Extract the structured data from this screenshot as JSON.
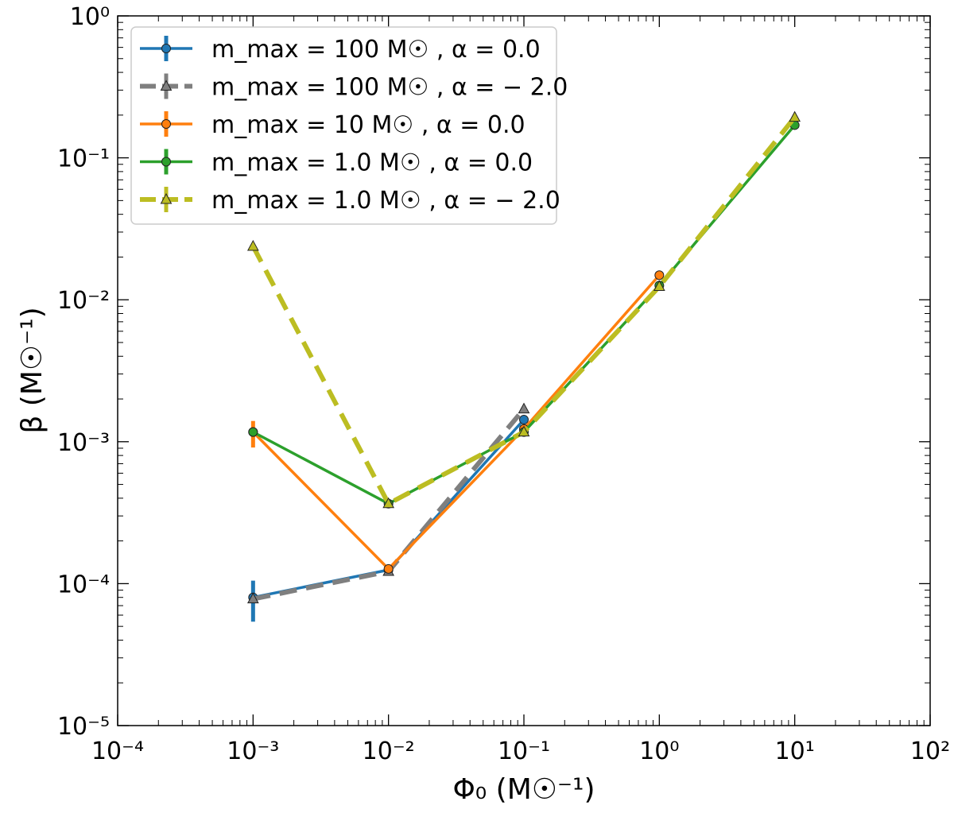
{
  "chart_data": {
    "type": "line",
    "xlabel": "Φ₀ (M☉⁻¹)",
    "ylabel": "β (M☉⁻¹)",
    "xscale": "log",
    "yscale": "log",
    "xlim": [
      0.0001,
      100
    ],
    "ylim": [
      1e-05,
      1
    ],
    "xticks": [
      0.0001,
      0.001,
      0.01,
      0.1,
      1,
      10,
      100
    ],
    "xtick_labels": [
      "10⁻⁴",
      "10⁻³",
      "10⁻²",
      "10⁻¹",
      "10⁰",
      "10¹",
      "10²"
    ],
    "yticks": [
      1e-05,
      0.0001,
      0.001,
      0.01,
      0.1,
      1
    ],
    "ytick_labels": [
      "10⁻⁵",
      "10⁻⁴",
      "10⁻³",
      "10⁻²",
      "10⁻¹",
      "10⁰"
    ],
    "grid": false,
    "legend_placement": "top-left",
    "series": [
      {
        "name": "m_max = 100 M☉ , α = 0.0",
        "color": "#1f77b4",
        "marker": "circle",
        "dashed": false,
        "x": [
          0.001,
          0.01,
          0.1
        ],
        "y": [
          8e-05,
          0.000125,
          0.00143
        ],
        "yerr": [
          [
            5.4e-05,
            0.000105
          ],
          null,
          null
        ]
      },
      {
        "name": "m_max = 100 M☉ , α = − 2.0",
        "color": "#7f7f7f",
        "marker": "triangle",
        "dashed": true,
        "x": [
          0.001,
          0.01,
          0.1
        ],
        "y": [
          7.8e-05,
          0.000122,
          0.0017
        ],
        "yerr": [
          null,
          null,
          null
        ]
      },
      {
        "name": "m_max = 10 M☉ , α = 0.0",
        "color": "#ff7f0e",
        "marker": "circle",
        "dashed": false,
        "x": [
          0.001,
          0.01,
          0.1,
          1
        ],
        "y": [
          0.00117,
          0.000127,
          0.00123,
          0.0149
        ],
        "yerr": [
          [
            0.00091,
            0.0014
          ],
          null,
          null,
          null
        ]
      },
      {
        "name": "m_max = 1.0 M☉ , α = 0.0",
        "color": "#2ca02c",
        "marker": "circle",
        "dashed": false,
        "x": [
          0.001,
          0.01,
          0.1,
          1,
          10
        ],
        "y": [
          0.00117,
          0.000366,
          0.00117,
          0.0126,
          0.17
        ],
        "yerr": [
          null,
          null,
          null,
          null,
          null
        ]
      },
      {
        "name": "m_max = 1.0 M☉ , α = − 2.0",
        "color": "#bcbd22",
        "marker": "triangle",
        "dashed": true,
        "x": [
          0.001,
          0.01,
          0.1,
          1,
          10
        ],
        "y": [
          0.0238,
          0.000366,
          0.00117,
          0.0124,
          0.193
        ],
        "yerr": [
          null,
          null,
          null,
          null,
          null
        ]
      }
    ]
  }
}
